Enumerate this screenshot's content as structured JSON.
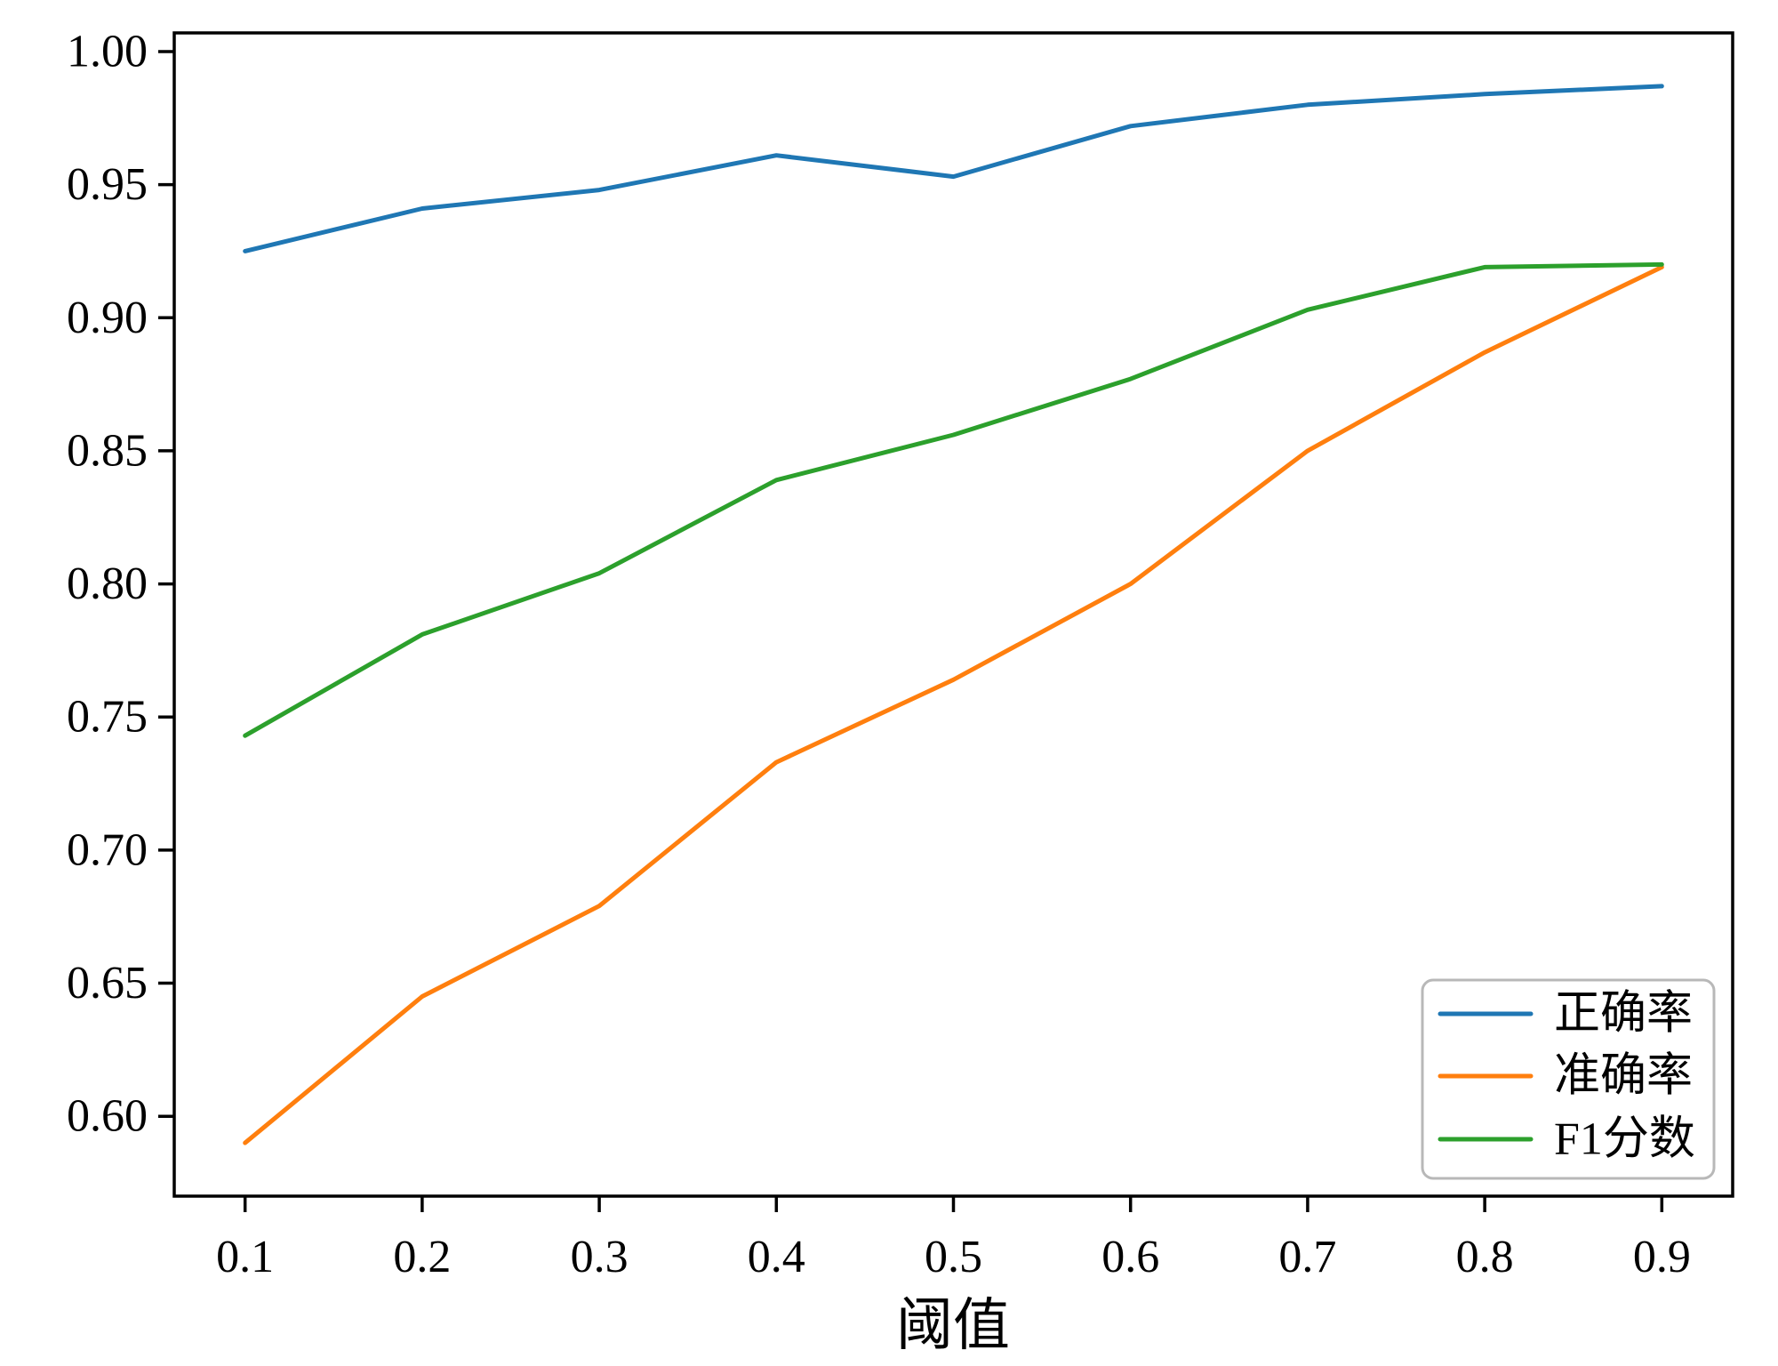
{
  "chart_data": {
    "type": "line",
    "title": "",
    "xlabel": "阈值",
    "ylabel": "",
    "x": [
      0.1,
      0.2,
      0.3,
      0.4,
      0.5,
      0.6,
      0.7,
      0.8,
      0.9
    ],
    "x_tick_labels": [
      "0.1",
      "0.2",
      "0.3",
      "0.4",
      "0.5",
      "0.6",
      "0.7",
      "0.8",
      "0.9"
    ],
    "y_tick_values": [
      0.6,
      0.65,
      0.7,
      0.75,
      0.8,
      0.85,
      0.9,
      0.95,
      1.0
    ],
    "y_tick_labels": [
      "0.60",
      "0.65",
      "0.70",
      "0.75",
      "0.80",
      "0.85",
      "0.90",
      "0.95",
      "1.00"
    ],
    "xlim": [
      0.06,
      0.94
    ],
    "ylim": [
      0.57,
      1.007
    ],
    "grid": false,
    "legend_position": "lower right",
    "series": [
      {
        "name": "正确率",
        "color": "#1f77b4",
        "values": [
          0.925,
          0.941,
          0.948,
          0.961,
          0.953,
          0.972,
          0.98,
          0.984,
          0.987
        ]
      },
      {
        "name": "准确率",
        "color": "#ff7f0e",
        "values": [
          0.59,
          0.645,
          0.679,
          0.733,
          0.764,
          0.8,
          0.85,
          0.887,
          0.919
        ]
      },
      {
        "name": "F1分数",
        "color": "#2ca02c",
        "values": [
          0.743,
          0.781,
          0.804,
          0.839,
          0.856,
          0.877,
          0.903,
          0.919,
          0.92
        ]
      }
    ]
  }
}
